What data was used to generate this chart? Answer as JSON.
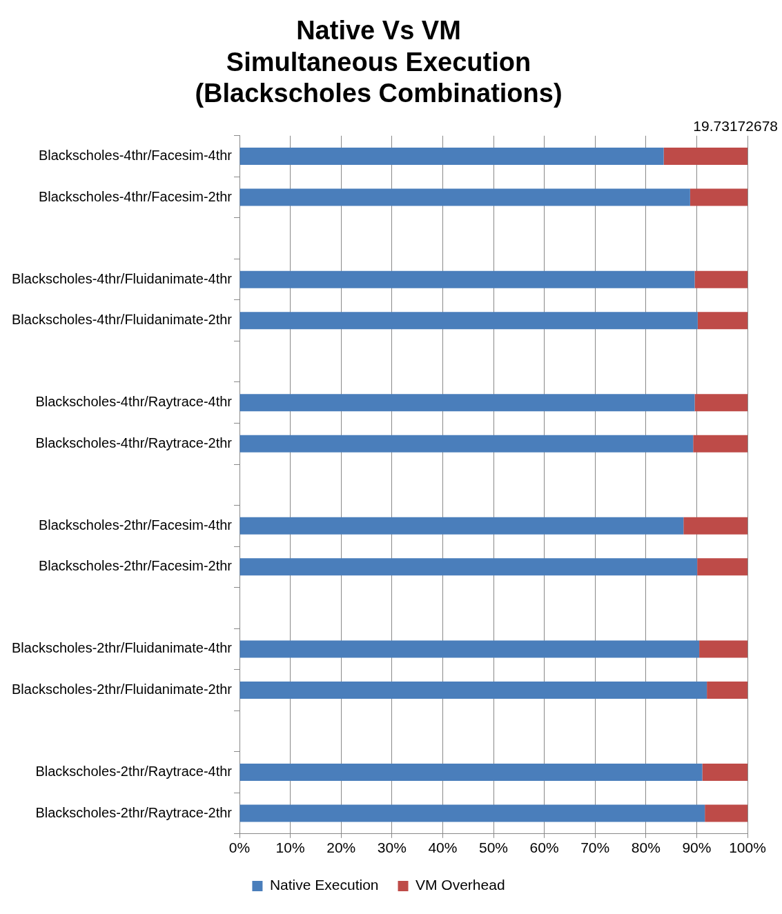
{
  "chart_data": {
    "type": "bar",
    "orientation": "horizontal",
    "stacked": true,
    "title": "Native Vs VM\nSimultaneous Execution\n(Blackscholes Combinations)",
    "categories": [
      "Blackscholes-4thr/Facesim-4thr",
      "Blackscholes-4thr/Facesim-2thr",
      null,
      "Blackscholes-4thr/Fluidanimate-4thr",
      "Blackscholes-4thr/Fluidanimate-2thr",
      null,
      "Blackscholes-4thr/Raytrace-4thr",
      "Blackscholes-4thr/Raytrace-2thr",
      null,
      "Blackscholes-2thr/Facesim-4thr",
      "Blackscholes-2thr/Facesim-2thr",
      null,
      "Blackscholes-2thr/Fluidanimate-4thr",
      "Blackscholes-2thr/Fluidanimate-2thr",
      null,
      "Blackscholes-2thr/Raytrace-4thr",
      "Blackscholes-2thr/Raytrace-2thr"
    ],
    "series": [
      {
        "name": "Native Execution",
        "color": "#4a7ebb",
        "values": [
          83.5,
          88.7,
          null,
          89.6,
          90.2,
          null,
          89.6,
          89.3,
          null,
          87.4,
          90.1,
          null,
          90.5,
          92.0,
          null,
          91.1,
          91.6
        ]
      },
      {
        "name": "VM Overhead",
        "color": "#be4b48",
        "values": [
          16.5,
          11.3,
          null,
          10.4,
          9.8,
          null,
          10.4,
          10.7,
          null,
          12.6,
          9.9,
          null,
          9.5,
          8.0,
          null,
          8.9,
          8.4
        ]
      }
    ],
    "xlim": [
      0,
      100
    ],
    "xticks": [
      {
        "value": 0,
        "label": "0%"
      },
      {
        "value": 10,
        "label": "10%"
      },
      {
        "value": 20,
        "label": "20%"
      },
      {
        "value": 30,
        "label": "30%"
      },
      {
        "value": 40,
        "label": "40%"
      },
      {
        "value": 50,
        "label": "50%"
      },
      {
        "value": 60,
        "label": "60%"
      },
      {
        "value": 70,
        "label": "70%"
      },
      {
        "value": 80,
        "label": "80%"
      },
      {
        "value": 90,
        "label": "90%"
      },
      {
        "value": 100,
        "label": "100%"
      }
    ],
    "grid": "x",
    "legend": "bottom",
    "annotations": [
      "19.73172678"
    ]
  }
}
